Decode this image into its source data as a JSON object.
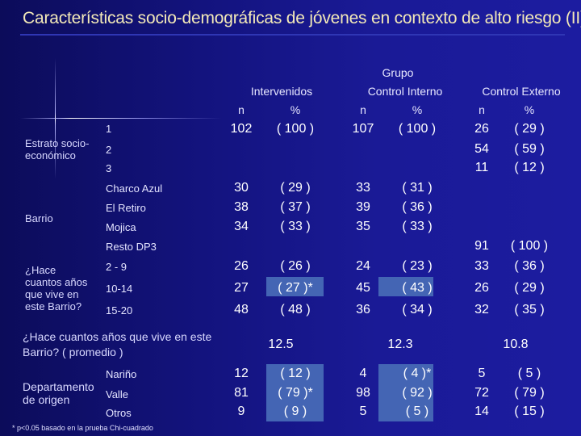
{
  "title": "Características socio-demográficas de jóvenes en contexto de alto riesgo (II)",
  "header": {
    "grupo": "Grupo",
    "intervenidos": "Intervenidos",
    "control_interno": "Control Interno",
    "control_externo": "Control Externo",
    "n": "n",
    "pct": "%"
  },
  "estrato": {
    "label": "Estrato socio-económico",
    "cats": [
      "1",
      "2",
      "3"
    ],
    "intervenidos": {
      "n": "102",
      "pct": "( 100 )"
    },
    "interno": {
      "n": "107",
      "pct": "( 100 )"
    },
    "externo": [
      {
        "n": "26",
        "pct": "( 29 )"
      },
      {
        "n": "54",
        "pct": "( 59 )"
      },
      {
        "n": "11",
        "pct": "( 12 )"
      }
    ]
  },
  "barrio": {
    "label": "Barrio",
    "cats": [
      "Charco Azul",
      "El Retiro",
      "Mojica",
      "Resto DP3"
    ],
    "intervenidos": [
      {
        "n": "30",
        "pct": "( 29 )"
      },
      {
        "n": "38",
        "pct": "( 37 )"
      },
      {
        "n": "34",
        "pct": "( 33 )"
      }
    ],
    "interno": [
      {
        "n": "33",
        "pct": "( 31 )"
      },
      {
        "n": "39",
        "pct": "( 36 )"
      },
      {
        "n": "35",
        "pct": "( 33 )"
      }
    ],
    "externo_resto": {
      "n": "91",
      "pct": "( 100 )"
    }
  },
  "anos": {
    "label": "¿Hace cuantos años que vive en este Barrio?",
    "cats": [
      "2 - 9",
      "10-14",
      "15-20"
    ],
    "intervenidos": [
      {
        "n": "26",
        "pct": "( 26 )"
      },
      {
        "n": "27",
        "pct": "( 27 )*"
      },
      {
        "n": "48",
        "pct": "( 48 )"
      }
    ],
    "interno": [
      {
        "n": "24",
        "pct": "( 23 )"
      },
      {
        "n": "45",
        "pct": "( 43 )"
      },
      {
        "n": "36",
        "pct": "( 34 )"
      }
    ],
    "externo": [
      {
        "n": "33",
        "pct": "( 36 )"
      },
      {
        "n": "26",
        "pct": "( 29 )"
      },
      {
        "n": "32",
        "pct": "( 35 )"
      }
    ]
  },
  "promedio": {
    "label": "¿Hace cuantos años que vive en este Barrio? ( promedio )",
    "intervenidos": "12.5",
    "interno": "12.3",
    "externo": "10.8"
  },
  "departamento": {
    "label": "Departamento de origen",
    "cats": [
      "Nariño",
      "Valle",
      "Otros"
    ],
    "intervenidos": [
      {
        "n": "12",
        "pct": "( 12 )"
      },
      {
        "n": "81",
        "pct": "( 79 )*"
      },
      {
        "n": "9",
        "pct": "( 9 )"
      }
    ],
    "interno": [
      {
        "n": "4",
        "pct": "( 4 )*"
      },
      {
        "n": "98",
        "pct": "( 92 )"
      },
      {
        "n": "5",
        "pct": "( 5 )"
      }
    ],
    "externo": [
      {
        "n": "5",
        "pct": "( 5 )"
      },
      {
        "n": "72",
        "pct": "( 79 )"
      },
      {
        "n": "14",
        "pct": "( 15 )"
      }
    ]
  },
  "footnote": "* p<0.05 basado en la prueba Chi-cuadrado"
}
